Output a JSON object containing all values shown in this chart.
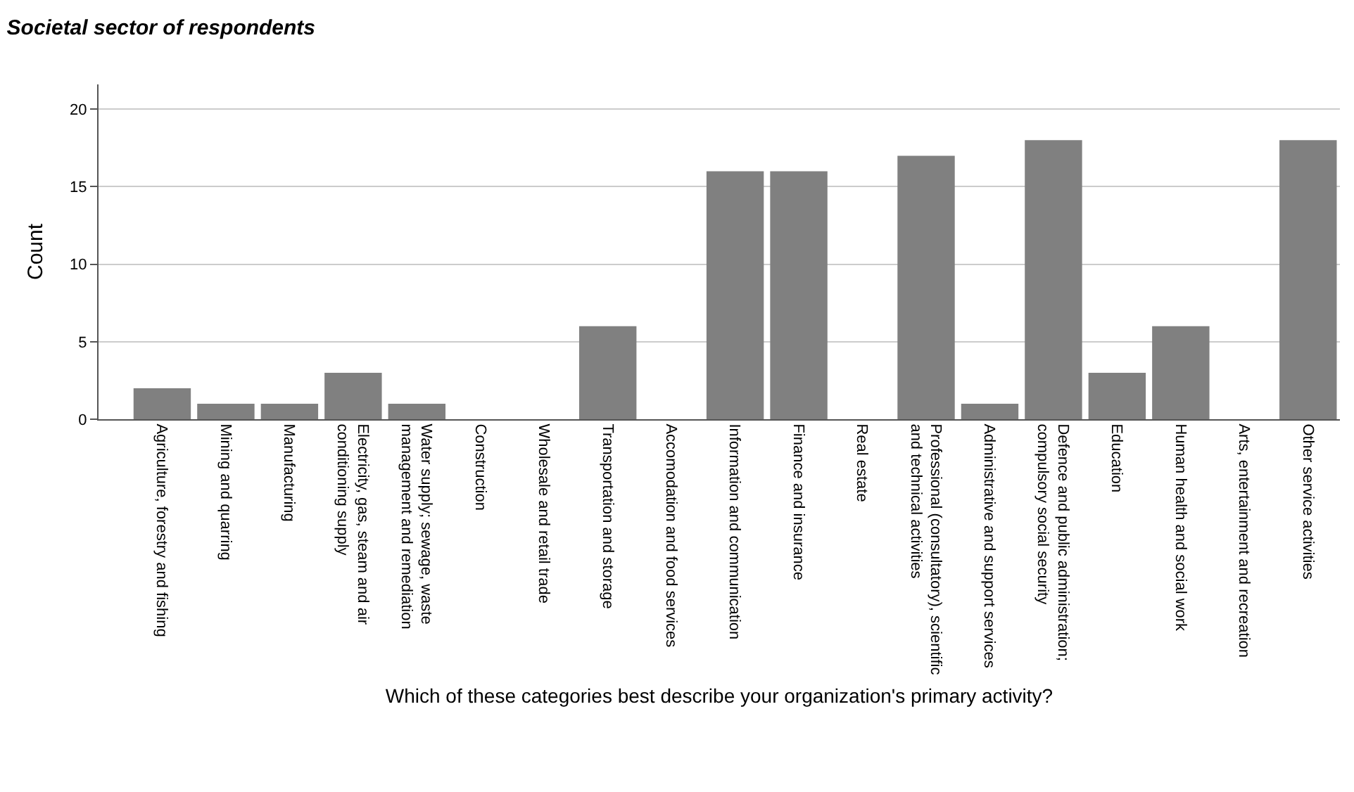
{
  "chart_data": {
    "type": "bar",
    "title": "Societal sector of respondents",
    "xlabel": "Which of these categories best describe your organization's primary activity?",
    "ylabel": "Count",
    "categories": [
      "Agriculture, forestry and fishing",
      "Mining and quarring",
      "Manufacturing",
      "Electricity, gas, steam and air\nconditioning supply",
      "Water supply; sewage, waste\nmanagement and remediation",
      "Construction",
      "Wholesale and retail trade",
      "Transportation and storage",
      "Accomodation and food services",
      "Information and communication",
      "Finance and insurance",
      "Real estate",
      "Professional (consultatory), scientific\nand technical activities",
      "Administrative and support services",
      "Defence and public administration;\ncompulsory social security",
      "Education",
      "Human health and social work",
      "Arts, entertainment and recreation",
      "Other service activities"
    ],
    "values": [
      2,
      1,
      1,
      3,
      1,
      0,
      0,
      6,
      0,
      16,
      16,
      0,
      17,
      1,
      18,
      3,
      6,
      0,
      18
    ],
    "color": "#808080",
    "ylim": [
      0,
      21.6
    ],
    "yticks": [
      0,
      5,
      10,
      15,
      20
    ],
    "grid": "y",
    "legend": false
  }
}
